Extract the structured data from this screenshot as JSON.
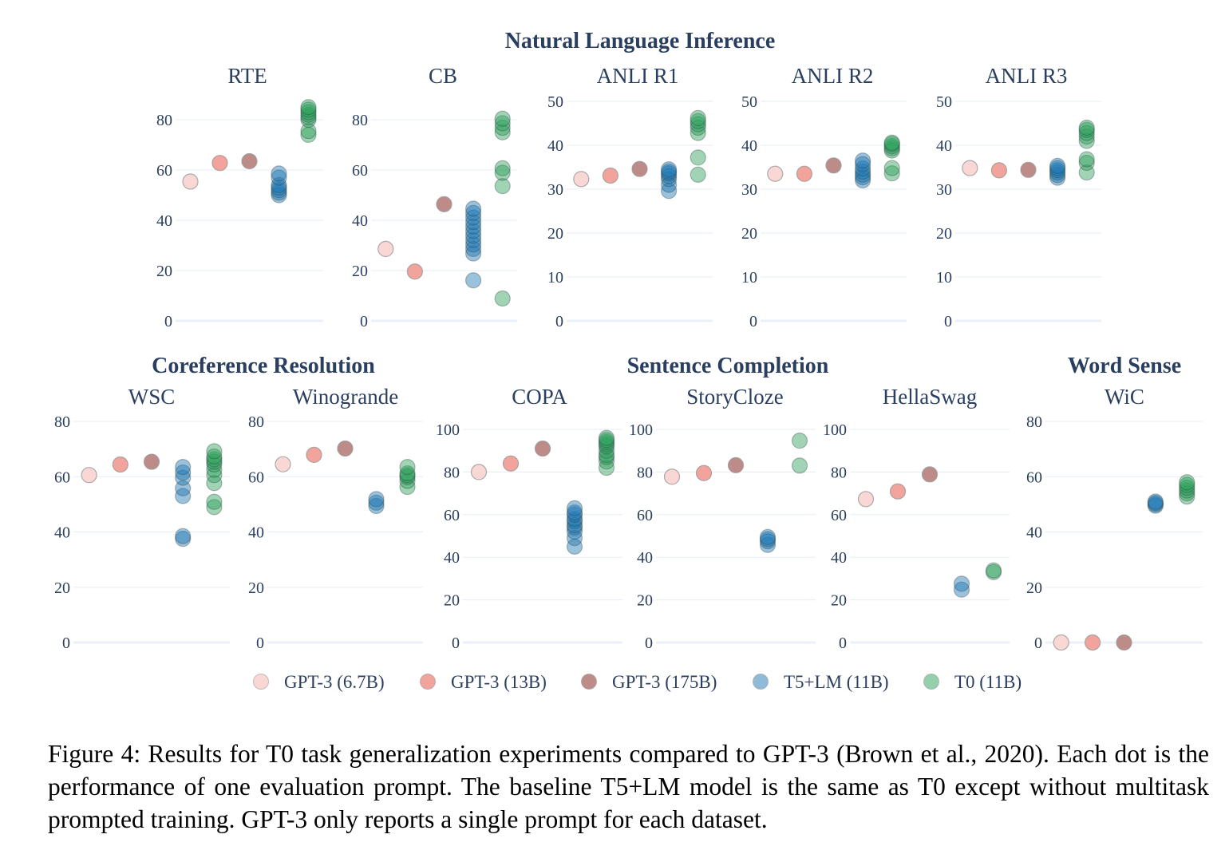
{
  "chart_data": {
    "type": "scatter",
    "title": "",
    "legend_placement": "bottom-center",
    "series": [
      {
        "name": "GPT-3 (6.7B)",
        "color": "#f9d7d5",
        "opacity": 1.0
      },
      {
        "name": "GPT-3 (13B)",
        "color": "#f1a39c",
        "opacity": 1.0
      },
      {
        "name": "GPT-3 (175B)",
        "color": "#bd8c89",
        "opacity": 1.0
      },
      {
        "name": "T5+LM (11B)",
        "color": "#1f77b4",
        "opacity": 0.45
      },
      {
        "name": "T0 (11B)",
        "color": "#2ca05a",
        "opacity": 0.45
      }
    ],
    "groups": [
      {
        "title": "Natural Language Inference",
        "panels": [
          0,
          1,
          2,
          3,
          4
        ]
      },
      {
        "title": "Coreference Resolution",
        "panels": [
          5,
          6
        ]
      },
      {
        "title": "Sentence Completion",
        "panels": [
          7,
          8,
          9
        ]
      },
      {
        "title": "Word Sense",
        "panels": [
          10
        ]
      }
    ],
    "panels": [
      {
        "title": "RTE",
        "ylim": [
          0,
          90
        ],
        "yticks": [
          0,
          20,
          40,
          60,
          80
        ],
        "values": [
          [
            55.4
          ],
          [
            62.8
          ],
          [
            63.5
          ],
          [
            50.0,
            51.0,
            52.0,
            53.0,
            54.0,
            57.0,
            58.6
          ],
          [
            74.0,
            75.5,
            80.0,
            81.0,
            82.0,
            83.0,
            84.0,
            85.0
          ]
        ]
      },
      {
        "title": "CB",
        "ylim": [
          0,
          90
        ],
        "yticks": [
          0,
          20,
          40,
          60,
          80
        ],
        "values": [
          [
            28.6
          ],
          [
            19.6
          ],
          [
            46.4
          ],
          [
            16.1,
            26.8,
            28.6,
            30.4,
            32.1,
            33.9,
            35.7,
            37.5,
            39.3,
            41.1,
            42.9,
            44.6
          ],
          [
            8.9,
            53.6,
            58.9,
            60.7,
            75.0,
            76.8,
            78.6,
            80.4
          ]
        ]
      },
      {
        "title": "ANLI R1",
        "ylim": [
          0,
          50
        ],
        "yticks": [
          0,
          10,
          20,
          30,
          40,
          50
        ],
        "values": [
          [
            32.3
          ],
          [
            33.1
          ],
          [
            34.6
          ],
          [
            29.6,
            31.0,
            32.3,
            33.0,
            33.6,
            34.0,
            34.5
          ],
          [
            33.3,
            37.2,
            42.8,
            44.0,
            44.8,
            45.5,
            46.2
          ]
        ]
      },
      {
        "title": "ANLI R2",
        "ylim": [
          0,
          50
        ],
        "yticks": [
          0,
          10,
          20,
          30,
          40,
          50
        ],
        "values": [
          [
            33.5
          ],
          [
            33.5
          ],
          [
            35.4
          ],
          [
            32.0,
            32.7,
            33.3,
            34.0,
            34.7,
            35.7,
            36.5
          ],
          [
            33.6,
            34.8,
            38.8,
            39.3,
            39.8,
            40.3,
            40.6
          ]
        ]
      },
      {
        "title": "ANLI R3",
        "ylim": [
          0,
          50
        ],
        "yticks": [
          0,
          10,
          20,
          30,
          40,
          50
        ],
        "values": [
          [
            34.8
          ],
          [
            34.3
          ],
          [
            34.4
          ],
          [
            32.6,
            33.2,
            33.8,
            34.3,
            34.8,
            35.3
          ],
          [
            33.8,
            36.0,
            36.8,
            41.0,
            42.0,
            42.8,
            43.5,
            44.0
          ]
        ]
      },
      {
        "title": "WSC",
        "ylim": [
          0,
          85
        ],
        "yticks": [
          0,
          20,
          40,
          60,
          80
        ],
        "values": [
          [
            60.6
          ],
          [
            64.4
          ],
          [
            65.4
          ],
          [
            37.5,
            38.5,
            53.0,
            55.8,
            59.6,
            61.5,
            63.5
          ],
          [
            49.0,
            50.9,
            57.7,
            60.6,
            62.5,
            64.4,
            65.4,
            66.3,
            67.3,
            69.2
          ]
        ]
      },
      {
        "title": "Winogrande",
        "ylim": [
          0,
          85
        ],
        "yticks": [
          0,
          20,
          40,
          60,
          80
        ],
        "values": [
          [
            64.5
          ],
          [
            67.9
          ],
          [
            70.2
          ],
          [
            49.4,
            50.6,
            51.9
          ],
          [
            56.3,
            58.5,
            59.9,
            60.5,
            61.2,
            63.5
          ]
        ]
      },
      {
        "title": "COPA",
        "ylim": [
          0,
          105
        ],
        "yticks": [
          0,
          20,
          40,
          60,
          80,
          100
        ],
        "values": [
          [
            80.0
          ],
          [
            84.0
          ],
          [
            91.0
          ],
          [
            45.0,
            49.0,
            52.0,
            54.0,
            55.0,
            57.0,
            58.0,
            60.0,
            61.0,
            63.0
          ],
          [
            82.0,
            85.0,
            87.0,
            88.0,
            90.0,
            92.0,
            93.0,
            94.0,
            95.0,
            96.0
          ]
        ]
      },
      {
        "title": "StoryCloze",
        "ylim": [
          0,
          105
        ],
        "yticks": [
          0,
          20,
          40,
          60,
          80,
          100
        ],
        "values": [
          [
            77.8
          ],
          [
            79.5
          ],
          [
            83.2
          ],
          [
            45.8,
            47.5,
            48.5,
            49.5
          ],
          [
            83.0,
            94.7
          ]
        ]
      },
      {
        "title": "HellaSwag",
        "ylim": [
          0,
          105
        ],
        "yticks": [
          0,
          20,
          40,
          60,
          80,
          100
        ],
        "values": [
          [
            67.3
          ],
          [
            70.9
          ],
          [
            78.9
          ],
          [
            24.8,
            27.6
          ],
          [
            33.0,
            33.8
          ]
        ]
      },
      {
        "title": "WiC",
        "ylim": [
          0,
          85
        ],
        "yticks": [
          0,
          20,
          40,
          60,
          80
        ],
        "values": [
          [
            0.0
          ],
          [
            0.0
          ],
          [
            0.0
          ],
          [
            49.5,
            50.0,
            50.5,
            51.0
          ],
          [
            52.8,
            54.0,
            55.0,
            56.0,
            57.0,
            58.0
          ]
        ]
      }
    ]
  },
  "caption": {
    "lines": [
      "Figure 4: Results for T0 task generalization experiments compared to GPT-3 (Brown et al., 2020).",
      "Each dot is the performance of one evaluation prompt. The baseline T5+LM model is the same as",
      "T0 except without multitask prompted training. GPT-3 only reports a single prompt for each dataset."
    ]
  }
}
